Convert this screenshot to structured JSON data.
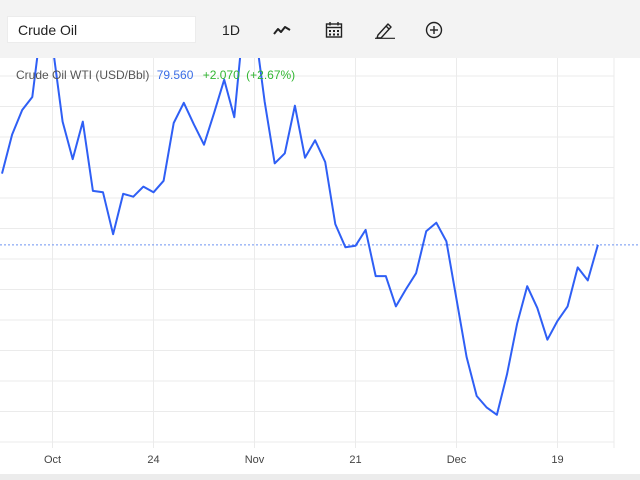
{
  "toolbar": {
    "search_value": "Crude Oil",
    "interval_label": "1D",
    "icons": [
      "line-style-icon",
      "calendar-icon",
      "pencil-icon",
      "plus-circle-icon"
    ]
  },
  "legend": {
    "name": "Crude Oil WTI (USD/Bbl)",
    "price": "79.560",
    "change": "+2.070",
    "change_pct": "(+2.67%)"
  },
  "colors": {
    "series": "#2f5ff5",
    "price_text": "#3c6ee6",
    "change_text": "#33b733",
    "grid": "#ebebeb",
    "toolbar_bg": "#f3f3f3"
  },
  "chart_data": {
    "type": "line",
    "title": "",
    "xlabel": "",
    "ylabel": "",
    "x_tick_labels": [
      "Oct",
      "24",
      "Nov",
      "21",
      "Dec",
      "19"
    ],
    "x_tick_index": [
      5,
      15,
      25,
      35,
      45,
      55
    ],
    "current_price_line": 79.56,
    "grid": true,
    "ylim": [
      65.5,
      92.5
    ],
    "series": [
      {
        "name": "Crude Oil WTI (USD/Bbl)",
        "values": [
          84.5,
          87.2,
          88.9,
          89.8,
          95.4,
          93.4,
          88.1,
          85.5,
          88.1,
          83.3,
          83.2,
          80.3,
          83.1,
          82.9,
          83.6,
          83.2,
          84.0,
          88.0,
          89.4,
          87.9,
          86.5,
          88.7,
          91.0,
          88.4,
          95.6,
          94.8,
          89.5,
          85.2,
          85.9,
          89.2,
          85.6,
          86.8,
          85.3,
          81.0,
          79.4,
          79.5,
          80.6,
          77.4,
          77.4,
          75.3,
          76.5,
          77.6,
          80.5,
          81.1,
          79.8,
          75.8,
          71.8,
          69.1,
          68.3,
          67.8,
          70.6,
          74.1,
          76.7,
          75.2,
          73.0,
          74.3,
          75.3,
          78.0,
          77.1,
          79.56
        ]
      }
    ]
  }
}
